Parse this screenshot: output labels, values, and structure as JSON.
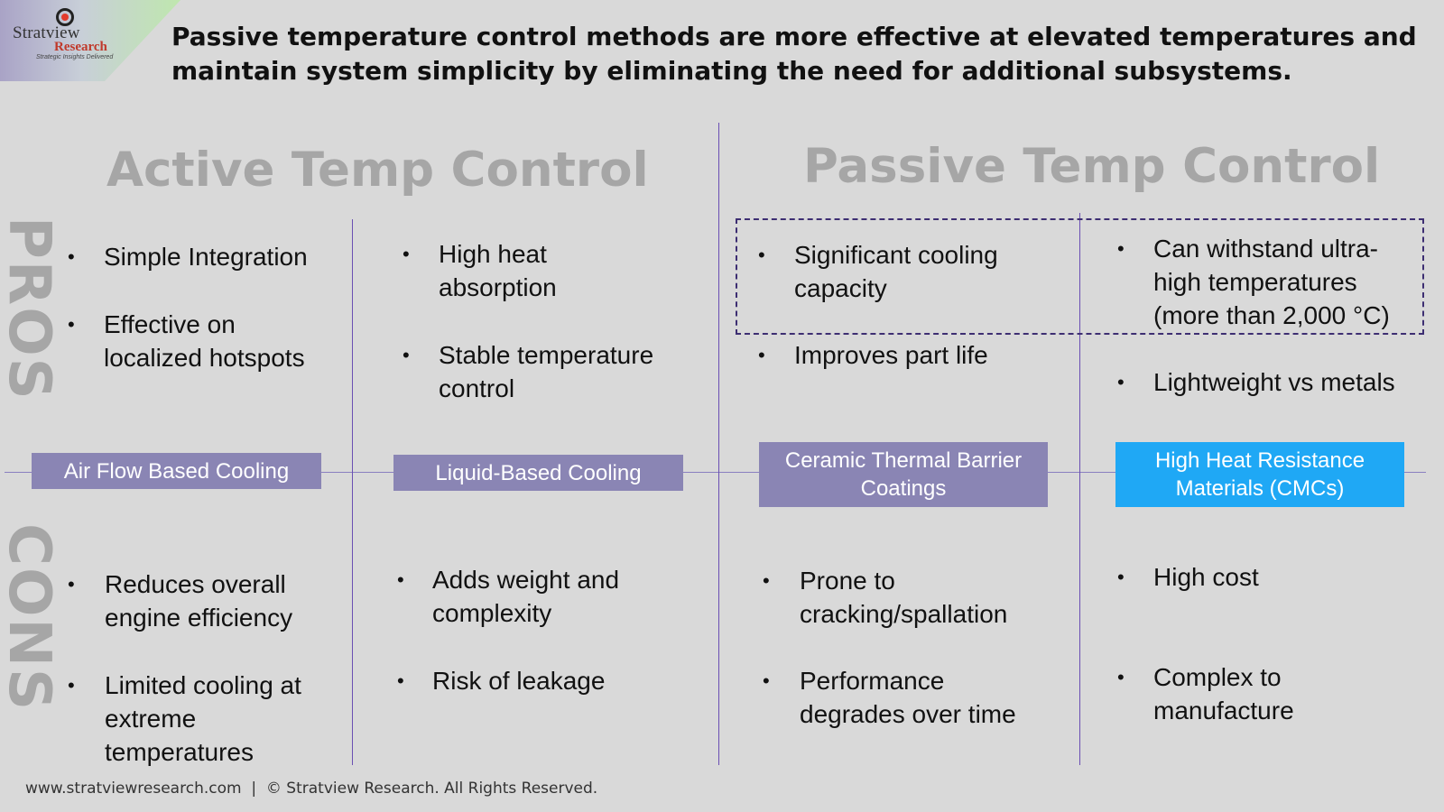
{
  "logo": {
    "name": "Stratview",
    "sub": "Research",
    "tagline": "Strategic Insights Delivered"
  },
  "headline": "Passive temperature control methods are more effective at elevated temperatures and maintain system simplicity by eliminating the need for additional subsystems.",
  "titles": {
    "active": "Active Temp Control",
    "passive": "Passive Temp Control"
  },
  "side_labels": {
    "pros": "PROS",
    "cons": "CONS"
  },
  "categories": [
    {
      "label": "Air Flow Based Cooling",
      "pros": [
        "Simple Integration",
        "Effective on localized hotspots"
      ],
      "cons": [
        "Reduces overall engine efficiency",
        "Limited cooling at extreme temperatures"
      ]
    },
    {
      "label": "Liquid-Based Cooling",
      "pros": [
        "High heat absorption",
        "Stable temperature control"
      ],
      "cons": [
        "Adds weight and complexity",
        "Risk of leakage"
      ]
    },
    {
      "label": "Ceramic Thermal Barrier Coatings",
      "pros": [
        "Significant cooling capacity",
        "Improves part life"
      ],
      "cons": [
        "Prone to cracking/spallation",
        "Performance degrades over time"
      ]
    },
    {
      "label": "High Heat Resistance Materials (CMCs)",
      "pros": [
        "Can withstand ultra-high temperatures (more than 2,000 °C)",
        "Lightweight vs metals"
      ],
      "cons": [
        "High cost",
        "Complex to manufacture"
      ]
    }
  ],
  "footer": "www.stratviewresearch.com  |  © Stratview Research. All Rights Reserved.",
  "colors": {
    "category_box": "#8a85b4",
    "highlight_box": "#1fa8f5",
    "divider": "#6a4fb3",
    "title_gray": "#a6a6a6"
  }
}
